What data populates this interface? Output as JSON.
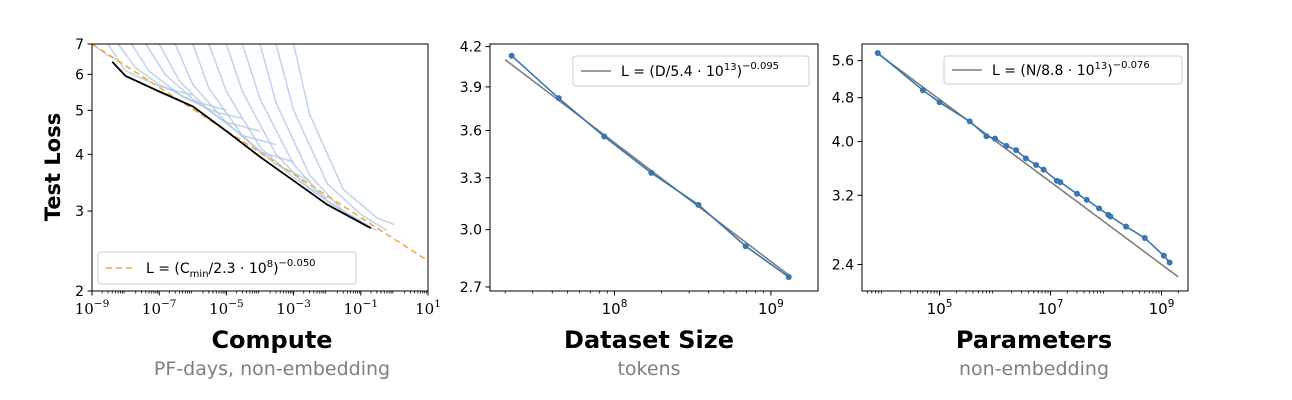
{
  "figure": {
    "ylabel": "Test Loss"
  },
  "chart_data": [
    {
      "type": "line",
      "title": "Compute",
      "subtitle": "PF-days, non-embedding",
      "xscale": "log",
      "yscale": "log",
      "xlim": [
        1e-09,
        10
      ],
      "ylim": [
        2,
        7
      ],
      "xticks": [
        1e-09,
        1e-07,
        1e-05,
        0.001,
        0.1,
        10
      ],
      "xtick_labels": [
        [
          "10",
          "−9"
        ],
        [
          "10",
          "−7"
        ],
        [
          "10",
          "−5"
        ],
        [
          "10",
          "−3"
        ],
        [
          "10",
          "−1"
        ],
        [
          "10",
          "1"
        ]
      ],
      "yticks": [
        2,
        3,
        4,
        5,
        6,
        7
      ],
      "ytick_labels": [
        "2",
        "3",
        "4",
        "5",
        "6",
        "7"
      ],
      "legend": {
        "position": "lower-left",
        "entries": [
          {
            "color": "#f4a93b",
            "style": "dashed",
            "segments": [
              "L = (C",
              "min",
              "/2.3 · 10",
              "8",
              ")",
              "−0.050"
            ]
          }
        ]
      },
      "fit_line": {
        "color": "#f4a93b",
        "x": [
          1e-09,
          10
        ],
        "y": [
          7.0,
          2.33
        ]
      },
      "frontier": {
        "color": "#000000",
        "x": [
          4e-09,
          1e-08,
          1e-07,
          1e-06,
          1e-05,
          0.0001,
          0.001,
          0.01,
          0.2
        ],
        "y": [
          6.4,
          5.95,
          5.5,
          5.1,
          4.5,
          3.95,
          3.5,
          3.1,
          2.75
        ]
      },
      "curves_color": "#aac6e2",
      "curves": [
        {
          "x": [
            1e-09,
            3e-09,
            6e-09
          ],
          "y": [
            7,
            6.6,
            6.45
          ]
        },
        {
          "x": [
            3e-09,
            1e-08,
            1e-07,
            1e-06
          ],
          "y": [
            7,
            6.1,
            5.65,
            5.4
          ]
        },
        {
          "x": [
            6e-09,
            2e-08,
            1e-07,
            1e-06,
            1e-05
          ],
          "y": [
            7,
            6.2,
            5.7,
            5.25,
            5.0
          ]
        },
        {
          "x": [
            1.5e-08,
            5e-08,
            5e-07,
            5e-06,
            3e-05
          ],
          "y": [
            7,
            6.1,
            5.35,
            4.95,
            4.8
          ]
        },
        {
          "x": [
            4e-08,
            1.5e-07,
            1e-06,
            1e-05,
            0.0001
          ],
          "y": [
            7,
            6.0,
            5.3,
            4.7,
            4.5
          ]
        },
        {
          "x": [
            1e-07,
            4e-07,
            3e-06,
            3e-05,
            0.0003
          ],
          "y": [
            7,
            5.8,
            5.0,
            4.4,
            4.2
          ]
        },
        {
          "x": [
            3e-07,
            1e-06,
            1e-05,
            0.0001,
            0.001
          ],
          "y": [
            7,
            5.7,
            4.7,
            4.05,
            3.85
          ]
        },
        {
          "x": [
            1e-06,
            3e-06,
            3e-05,
            0.0003,
            0.003
          ],
          "y": [
            7,
            5.6,
            4.4,
            3.8,
            3.5
          ]
        },
        {
          "x": [
            3e-06,
            1e-05,
            0.0001,
            0.001,
            0.01
          ],
          "y": [
            7,
            5.5,
            4.15,
            3.55,
            3.2
          ]
        },
        {
          "x": [
            1e-05,
            3e-05,
            0.0003,
            0.003,
            0.03
          ],
          "y": [
            7,
            5.5,
            4.0,
            3.35,
            3.0
          ]
        },
        {
          "x": [
            3e-05,
            0.0001,
            0.001,
            0.01,
            0.1
          ],
          "y": [
            7,
            5.3,
            3.8,
            3.15,
            2.85
          ]
        },
        {
          "x": [
            0.0001,
            0.0003,
            0.003,
            0.03,
            0.3
          ],
          "y": [
            7,
            5.2,
            3.6,
            3.0,
            2.72
          ]
        },
        {
          "x": [
            0.0003,
            0.001,
            0.01,
            0.1,
            0.6
          ],
          "y": [
            7,
            5.0,
            3.45,
            2.95,
            2.72
          ]
        },
        {
          "x": [
            0.001,
            0.003,
            0.03,
            0.3,
            1.0
          ],
          "y": [
            7,
            4.9,
            3.35,
            2.9,
            2.8
          ]
        }
      ]
    },
    {
      "type": "line",
      "title": "Dataset Size",
      "subtitle": "tokens",
      "xscale": "log",
      "yscale": "log",
      "xlim": [
        16000000.0,
        2000000000.0
      ],
      "ylim": [
        2.68,
        4.22
      ],
      "xticks": [
        100000000.0,
        1000000000.0
      ],
      "xtick_labels": [
        [
          "10",
          "8"
        ],
        [
          "10",
          "9"
        ]
      ],
      "yticks": [
        2.7,
        3.0,
        3.3,
        3.6,
        3.9,
        4.2
      ],
      "ytick_labels": [
        "2.7",
        "3.0",
        "3.3",
        "3.6",
        "3.9",
        "4.2"
      ],
      "legend": {
        "position": "top-right",
        "entries": [
          {
            "color": "#7f7f7f",
            "style": "solid",
            "segments": [
              "L = (D/5.4 · 10",
              "13",
              ")",
              "−0.095"
            ]
          }
        ]
      },
      "fit_line": {
        "color": "#7f7f7f",
        "x": [
          20000000.0,
          1350000000.0
        ],
        "y": [
          4.1,
          2.75
        ]
      },
      "series": [
        {
          "color": "#3a76b0",
          "x": [
            22000000.0,
            44000000.0,
            86000000.0,
            172000000.0,
            344000000.0,
            690000000.0,
            1300000000.0
          ],
          "y": [
            4.13,
            3.82,
            3.56,
            3.33,
            3.14,
            2.91,
            2.75
          ]
        }
      ]
    },
    {
      "type": "line",
      "title": "Parameters",
      "subtitle": "non-embedding",
      "xscale": "log",
      "yscale": "log",
      "xlim": [
        4000.0,
        3000000000.0
      ],
      "ylim": [
        2.15,
        6.0
      ],
      "xticks": [
        100000.0,
        10000000.0,
        1000000000.0
      ],
      "xtick_labels": [
        [
          "10",
          "5"
        ],
        [
          "10",
          "7"
        ],
        [
          "10",
          "9"
        ]
      ],
      "yticks": [
        2.4,
        3.2,
        4.0,
        4.8,
        5.6
      ],
      "ytick_labels": [
        "2.4",
        "3.2",
        "4.0",
        "4.8",
        "5.6"
      ],
      "legend": {
        "position": "top-right",
        "entries": [
          {
            "color": "#7f7f7f",
            "style": "solid",
            "segments": [
              "L = (N/8.8 · 10",
              "13",
              ")",
              "−0.076"
            ]
          }
        ]
      },
      "fit_line": {
        "color": "#7f7f7f",
        "x": [
          8000.0,
          2000000000.0
        ],
        "y": [
          5.75,
          2.28
        ]
      },
      "series": [
        {
          "color": "#3a76b0",
          "x": [
            7700.0,
            50000.0,
            100000.0,
            350000.0,
            700000.0,
            1000000.0,
            1600000.0,
            2400000.0,
            3600000.0,
            5500000.0,
            7500000.0,
            13000000.0,
            15000000.0,
            30000000.0,
            45000000.0,
            75000000.0,
            110000000.0,
            120000000.0,
            230000000.0,
            500000000.0,
            1100000000.0,
            1400000000.0
          ],
          "y": [
            5.78,
            4.95,
            4.71,
            4.35,
            4.09,
            4.05,
            3.93,
            3.86,
            3.73,
            3.63,
            3.56,
            3.4,
            3.38,
            3.22,
            3.14,
            3.03,
            2.95,
            2.93,
            2.81,
            2.68,
            2.49,
            2.42
          ]
        }
      ]
    }
  ]
}
